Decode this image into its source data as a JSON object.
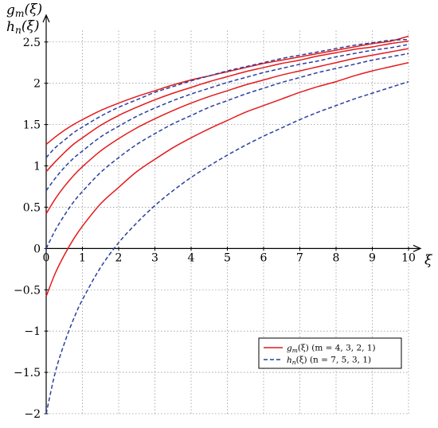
{
  "chart_data": {
    "type": "line",
    "xlabel": "ξ",
    "ylabel_lines": [
      "g_m(ξ)",
      "h_n(ξ)"
    ],
    "xlim": [
      0,
      10
    ],
    "ylim": [
      -2,
      2.7
    ],
    "xticks": [
      0,
      1,
      2,
      3,
      4,
      5,
      6,
      7,
      8,
      9,
      10
    ],
    "yticks": [
      -2,
      -1.5,
      -1,
      -0.5,
      0,
      0.5,
      1,
      1.5,
      2,
      2.5
    ],
    "xtick_labels": [
      "0",
      "1",
      "2",
      "3",
      "4",
      "5",
      "6",
      "7",
      "8",
      "9",
      "10"
    ],
    "ytick_labels": [
      "−2",
      "−1.5",
      "−1",
      "−0.5",
      "0",
      "0.5",
      "1",
      "1.5",
      "2",
      "2.5"
    ],
    "grid": true,
    "legend_position": "lower-right",
    "x": [
      0,
      0.25,
      0.5,
      0.75,
      1,
      1.5,
      2,
      2.5,
      3,
      3.5,
      4,
      4.5,
      5,
      5.5,
      6,
      6.5,
      7,
      7.5,
      8,
      8.5,
      9,
      9.5,
      10
    ],
    "series": [
      {
        "group": "g",
        "m": 4,
        "color": "#e41a1c",
        "dash": "solid",
        "values": [
          1.26,
          1.35,
          1.43,
          1.5,
          1.56,
          1.67,
          1.76,
          1.84,
          1.91,
          1.98,
          2.04,
          2.09,
          2.14,
          2.19,
          2.24,
          2.28,
          2.32,
          2.36,
          2.4,
          2.44,
          2.48,
          2.51,
          2.57
        ]
      },
      {
        "group": "g",
        "m": 3,
        "color": "#e41a1c",
        "dash": "solid",
        "values": [
          0.93,
          1.05,
          1.16,
          1.26,
          1.34,
          1.49,
          1.61,
          1.71,
          1.8,
          1.88,
          1.95,
          2.02,
          2.08,
          2.14,
          2.19,
          2.24,
          2.28,
          2.33,
          2.37,
          2.41,
          2.44,
          2.48,
          2.51
        ]
      },
      {
        "group": "g",
        "m": 2,
        "color": "#e41a1c",
        "dash": "solid",
        "values": [
          0.42,
          0.6,
          0.75,
          0.88,
          0.99,
          1.18,
          1.33,
          1.46,
          1.57,
          1.67,
          1.76,
          1.84,
          1.91,
          1.98,
          2.04,
          2.1,
          2.15,
          2.2,
          2.25,
          2.3,
          2.34,
          2.38,
          2.42
        ]
      },
      {
        "group": "g",
        "m": 1,
        "color": "#e41a1c",
        "dash": "solid",
        "values": [
          -0.58,
          -0.3,
          -0.08,
          0.11,
          0.27,
          0.54,
          0.74,
          0.93,
          1.08,
          1.22,
          1.34,
          1.45,
          1.55,
          1.65,
          1.73,
          1.81,
          1.89,
          1.96,
          2.02,
          2.09,
          2.15,
          2.2,
          2.25
        ]
      },
      {
        "group": "h",
        "n": 7,
        "color": "#2a3f9f",
        "dash": "dashed",
        "values": [
          1.1,
          1.22,
          1.31,
          1.4,
          1.47,
          1.6,
          1.71,
          1.8,
          1.89,
          1.96,
          2.03,
          2.09,
          2.15,
          2.2,
          2.25,
          2.3,
          2.34,
          2.38,
          2.42,
          2.46,
          2.49,
          2.52,
          2.53
        ]
      },
      {
        "group": "h",
        "n": 5,
        "color": "#2a3f9f",
        "dash": "dashed",
        "values": [
          0.7,
          0.85,
          0.98,
          1.09,
          1.18,
          1.35,
          1.48,
          1.6,
          1.7,
          1.79,
          1.87,
          1.94,
          2.01,
          2.07,
          2.13,
          2.18,
          2.23,
          2.27,
          2.32,
          2.36,
          2.4,
          2.43,
          2.47
        ]
      },
      {
        "group": "h",
        "n": 3,
        "color": "#2a3f9f",
        "dash": "dashed",
        "values": [
          0.0,
          0.22,
          0.4,
          0.56,
          0.69,
          0.92,
          1.1,
          1.26,
          1.39,
          1.51,
          1.61,
          1.71,
          1.79,
          1.87,
          1.94,
          2.01,
          2.07,
          2.13,
          2.18,
          2.23,
          2.28,
          2.32,
          2.36
        ]
      },
      {
        "group": "h",
        "n": 1,
        "color": "#2a3f9f",
        "dash": "dashed",
        "values": [
          -2.0,
          -1.5,
          -1.15,
          -0.86,
          -0.62,
          -0.23,
          0.07,
          0.31,
          0.52,
          0.7,
          0.86,
          1.0,
          1.13,
          1.25,
          1.36,
          1.46,
          1.56,
          1.65,
          1.73,
          1.81,
          1.88,
          1.95,
          2.02
        ]
      }
    ],
    "legend": [
      {
        "label": "g_m(ξ) (m = 4, 3, 2, 1)",
        "color": "#e41a1c",
        "dash": "solid"
      },
      {
        "label": "h_n(ξ) (n = 7, 5, 3, 1)",
        "color": "#2a3f9f",
        "dash": "dashed"
      }
    ]
  }
}
